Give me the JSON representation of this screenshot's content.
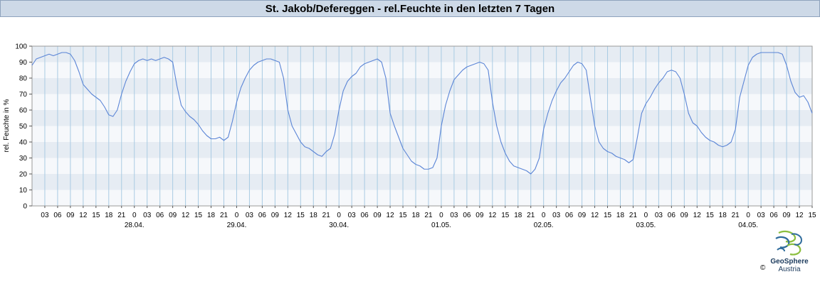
{
  "header": {
    "title": "St. Jakob/Defereggen - rel.Feuchte in den letzten 7 Tagen"
  },
  "logo": {
    "name": "GeoSphere",
    "country": "Austria",
    "copyright": "©"
  },
  "colors": {
    "line": "#5b85d6",
    "band_dark": "#e6ecf3",
    "band_light": "#f6f8fb",
    "grid": "#a9cbe3",
    "title_bg": "#cdd9e7",
    "logo_green": "#8cbf3f",
    "logo_blue": "#2f6c9c"
  },
  "chart_data": {
    "type": "line",
    "title": "St. Jakob/Defereggen - rel.Feuchte in den letzten 7 Tagen",
    "ylabel": "rel. Feuchte in %",
    "xlabel": "",
    "ylim": [
      0,
      100
    ],
    "yticks": [
      0,
      10,
      20,
      30,
      40,
      50,
      60,
      70,
      80,
      90,
      100
    ],
    "x_unit": "hours since 27.04. 00:00",
    "xlim": [
      0,
      183
    ],
    "hour_tick_labels": [
      "03",
      "06",
      "09",
      "12",
      "15",
      "18",
      "21",
      "0",
      "03",
      "06",
      "09",
      "12",
      "15",
      "18",
      "21",
      "0",
      "03",
      "06",
      "09",
      "12",
      "15",
      "18",
      "21",
      "0",
      "03",
      "06",
      "09",
      "12",
      "15",
      "18",
      "21",
      "0",
      "03",
      "06",
      "09",
      "12",
      "15",
      "18",
      "21",
      "0",
      "03",
      "06",
      "09",
      "12",
      "15",
      "18",
      "21",
      "0",
      "03",
      "06",
      "09",
      "12",
      "15",
      "18",
      "21",
      "0",
      "03",
      "06",
      "09",
      "12",
      "15"
    ],
    "date_labels": [
      "28.04.",
      "29.04.",
      "30.04.",
      "01.05.",
      "02.05.",
      "03.05.",
      "04.05."
    ],
    "grid": true,
    "legend": "none",
    "series": [
      {
        "color": "#5b85d6",
        "points": [
          [
            0,
            88
          ],
          [
            1,
            92
          ],
          [
            2,
            93
          ],
          [
            3,
            94
          ],
          [
            4,
            95
          ],
          [
            5,
            94
          ],
          [
            6,
            95
          ],
          [
            7,
            96
          ],
          [
            8,
            96
          ],
          [
            9,
            95
          ],
          [
            10,
            91
          ],
          [
            11,
            84
          ],
          [
            12,
            76
          ],
          [
            13,
            73
          ],
          [
            14,
            70
          ],
          [
            15,
            68
          ],
          [
            16,
            66
          ],
          [
            17,
            62
          ],
          [
            18,
            57
          ],
          [
            19,
            56
          ],
          [
            20,
            60
          ],
          [
            21,
            70
          ],
          [
            22,
            78
          ],
          [
            23,
            84
          ],
          [
            24,
            89
          ],
          [
            25,
            91
          ],
          [
            26,
            92
          ],
          [
            27,
            91
          ],
          [
            28,
            92
          ],
          [
            29,
            91
          ],
          [
            30,
            92
          ],
          [
            31,
            93
          ],
          [
            32,
            92
          ],
          [
            33,
            90
          ],
          [
            34,
            75
          ],
          [
            35,
            63
          ],
          [
            36,
            59
          ],
          [
            37,
            56
          ],
          [
            38,
            54
          ],
          [
            39,
            51
          ],
          [
            40,
            47
          ],
          [
            41,
            44
          ],
          [
            42,
            42
          ],
          [
            43,
            42
          ],
          [
            44,
            43
          ],
          [
            45,
            41
          ],
          [
            46,
            43
          ],
          [
            47,
            53
          ],
          [
            48,
            65
          ],
          [
            49,
            74
          ],
          [
            50,
            80
          ],
          [
            51,
            85
          ],
          [
            52,
            88
          ],
          [
            53,
            90
          ],
          [
            54,
            91
          ],
          [
            55,
            92
          ],
          [
            56,
            92
          ],
          [
            57,
            91
          ],
          [
            58,
            90
          ],
          [
            59,
            80
          ],
          [
            60,
            60
          ],
          [
            61,
            50
          ],
          [
            62,
            45
          ],
          [
            63,
            40
          ],
          [
            64,
            37
          ],
          [
            65,
            36
          ],
          [
            66,
            34
          ],
          [
            67,
            32
          ],
          [
            68,
            31
          ],
          [
            69,
            34
          ],
          [
            70,
            36
          ],
          [
            71,
            45
          ],
          [
            72,
            60
          ],
          [
            73,
            72
          ],
          [
            74,
            78
          ],
          [
            75,
            81
          ],
          [
            76,
            83
          ],
          [
            77,
            87
          ],
          [
            78,
            89
          ],
          [
            79,
            90
          ],
          [
            80,
            91
          ],
          [
            81,
            92
          ],
          [
            82,
            90
          ],
          [
            83,
            80
          ],
          [
            84,
            58
          ],
          [
            85,
            50
          ],
          [
            86,
            43
          ],
          [
            87,
            36
          ],
          [
            88,
            32
          ],
          [
            89,
            28
          ],
          [
            90,
            26
          ],
          [
            91,
            25
          ],
          [
            92,
            23
          ],
          [
            93,
            23
          ],
          [
            94,
            24
          ],
          [
            95,
            30
          ],
          [
            96,
            50
          ],
          [
            97,
            63
          ],
          [
            98,
            72
          ],
          [
            99,
            79
          ],
          [
            100,
            82
          ],
          [
            101,
            85
          ],
          [
            102,
            87
          ],
          [
            103,
            88
          ],
          [
            104,
            89
          ],
          [
            105,
            90
          ],
          [
            106,
            89
          ],
          [
            107,
            85
          ],
          [
            108,
            65
          ],
          [
            109,
            50
          ],
          [
            110,
            40
          ],
          [
            111,
            33
          ],
          [
            112,
            28
          ],
          [
            113,
            25
          ],
          [
            114,
            24
          ],
          [
            115,
            23
          ],
          [
            116,
            22
          ],
          [
            117,
            20
          ],
          [
            118,
            23
          ],
          [
            119,
            30
          ],
          [
            120,
            48
          ],
          [
            121,
            58
          ],
          [
            122,
            66
          ],
          [
            123,
            72
          ],
          [
            124,
            77
          ],
          [
            125,
            80
          ],
          [
            126,
            84
          ],
          [
            127,
            88
          ],
          [
            128,
            90
          ],
          [
            129,
            89
          ],
          [
            130,
            85
          ],
          [
            131,
            67
          ],
          [
            132,
            50
          ],
          [
            133,
            40
          ],
          [
            134,
            36
          ],
          [
            135,
            34
          ],
          [
            136,
            33
          ],
          [
            137,
            31
          ],
          [
            138,
            30
          ],
          [
            139,
            29
          ],
          [
            140,
            27
          ],
          [
            141,
            29
          ],
          [
            142,
            43
          ],
          [
            143,
            58
          ],
          [
            144,
            64
          ],
          [
            145,
            68
          ],
          [
            146,
            73
          ],
          [
            147,
            77
          ],
          [
            148,
            80
          ],
          [
            149,
            84
          ],
          [
            150,
            85
          ],
          [
            151,
            84
          ],
          [
            152,
            80
          ],
          [
            153,
            70
          ],
          [
            154,
            58
          ],
          [
            155,
            52
          ],
          [
            156,
            50
          ],
          [
            157,
            46
          ],
          [
            158,
            43
          ],
          [
            159,
            41
          ],
          [
            160,
            40
          ],
          [
            161,
            38
          ],
          [
            162,
            37
          ],
          [
            163,
            38
          ],
          [
            164,
            40
          ],
          [
            165,
            48
          ],
          [
            166,
            68
          ],
          [
            167,
            78
          ],
          [
            168,
            88
          ],
          [
            169,
            93
          ],
          [
            170,
            95
          ],
          [
            171,
            96
          ],
          [
            172,
            96
          ],
          [
            173,
            96
          ],
          [
            174,
            96
          ],
          [
            175,
            96
          ],
          [
            176,
            95
          ],
          [
            177,
            88
          ],
          [
            178,
            78
          ],
          [
            179,
            71
          ],
          [
            180,
            68
          ],
          [
            181,
            69
          ],
          [
            182,
            65
          ],
          [
            183,
            58
          ]
        ]
      }
    ]
  }
}
